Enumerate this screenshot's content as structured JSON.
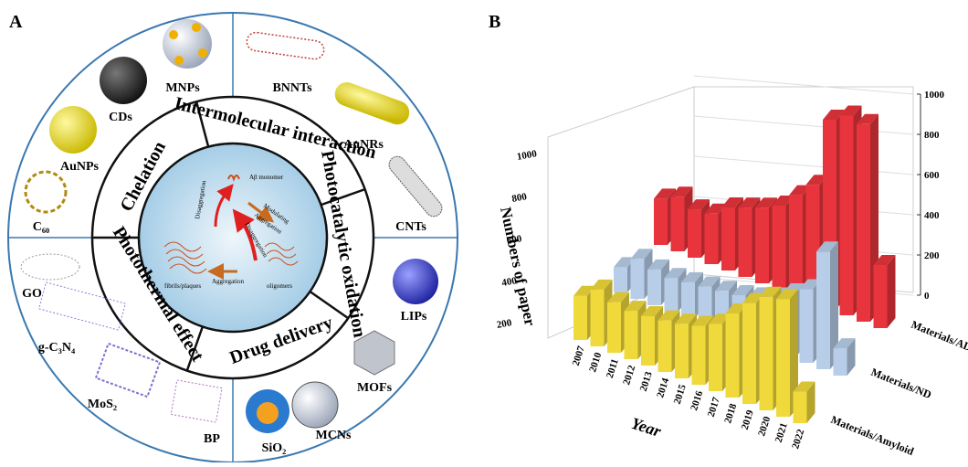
{
  "panel_a": {
    "label": "A",
    "mechanisms": [
      "Chelation",
      "Intermolecular interaction",
      "Photocatalytic oxidation",
      "Drug delivery",
      "Photothermal effect"
    ],
    "materials": [
      "MNPs",
      "CDs",
      "AuNPs",
      "C₆₀",
      "BNNTs",
      "AuNRs",
      "CNTs",
      "LIPs",
      "MOFs",
      "MCNs",
      "SiO₂",
      "BP",
      "MoS₂",
      "g-C₃N₄",
      "GO"
    ],
    "center": {
      "monomer": "Aβ monomer",
      "modulating": "Modulating",
      "aggregation_1": "Aggregation",
      "disaggregation_1": "Disaggregation",
      "disaggregation_2": "Disaggregation",
      "oligomers": "oligomers",
      "fibrils": "fibrils/plaques",
      "aggregation_2": "Aggregation"
    }
  },
  "chart_data": {
    "type": "bar3d",
    "panel_label": "B",
    "x_label": "Year",
    "y_label": "Numbers of paper",
    "categories": [
      "2007",
      "2010",
      "2011",
      "2012",
      "2013",
      "2014",
      "2015",
      "2016",
      "2017",
      "2018",
      "2019",
      "2020",
      "2021",
      "2022"
    ],
    "series": [
      {
        "name": "Materials/AD",
        "color": "#e8343c",
        "values": [
          220,
          260,
          230,
          240,
          300,
          330,
          360,
          400,
          480,
          560,
          900,
          950,
          940,
          300
        ]
      },
      {
        "name": "Materials/ND",
        "color": "#b7cde8",
        "values": [
          120,
          190,
          170,
          160,
          170,
          180,
          190,
          200,
          220,
          250,
          300,
          350,
          560,
          130
        ]
      },
      {
        "name": "Materials/Amyloid",
        "color": "#f0d93a",
        "values": [
          210,
          270,
          240,
          230,
          235,
          245,
          260,
          280,
          320,
          400,
          480,
          540,
          560,
          150
        ]
      }
    ],
    "ylim": [
      0,
      1000
    ],
    "yticks": [
      0,
      200,
      400,
      600,
      800,
      1000
    ],
    "grid": true
  }
}
